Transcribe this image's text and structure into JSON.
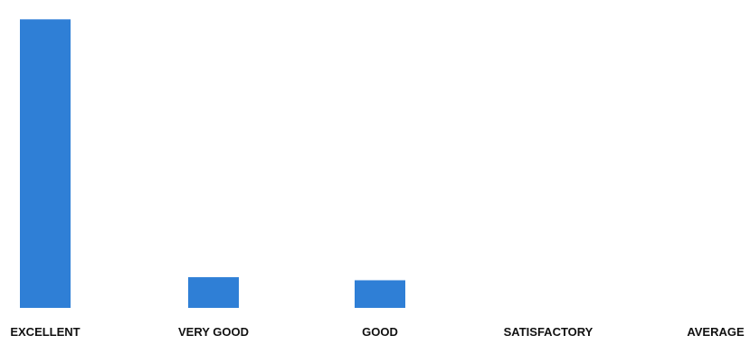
{
  "chart_data": {
    "type": "bar",
    "categories": [
      "EXCELLENT",
      "VERY GOOD",
      "GOOD",
      "SATISFACTORY",
      "AVERAGE"
    ],
    "values": [
      94,
      10,
      9,
      0,
      0
    ],
    "ylim": [
      0,
      100
    ],
    "grid": false,
    "legend": "none",
    "bar_color": "#2f7fd6"
  }
}
